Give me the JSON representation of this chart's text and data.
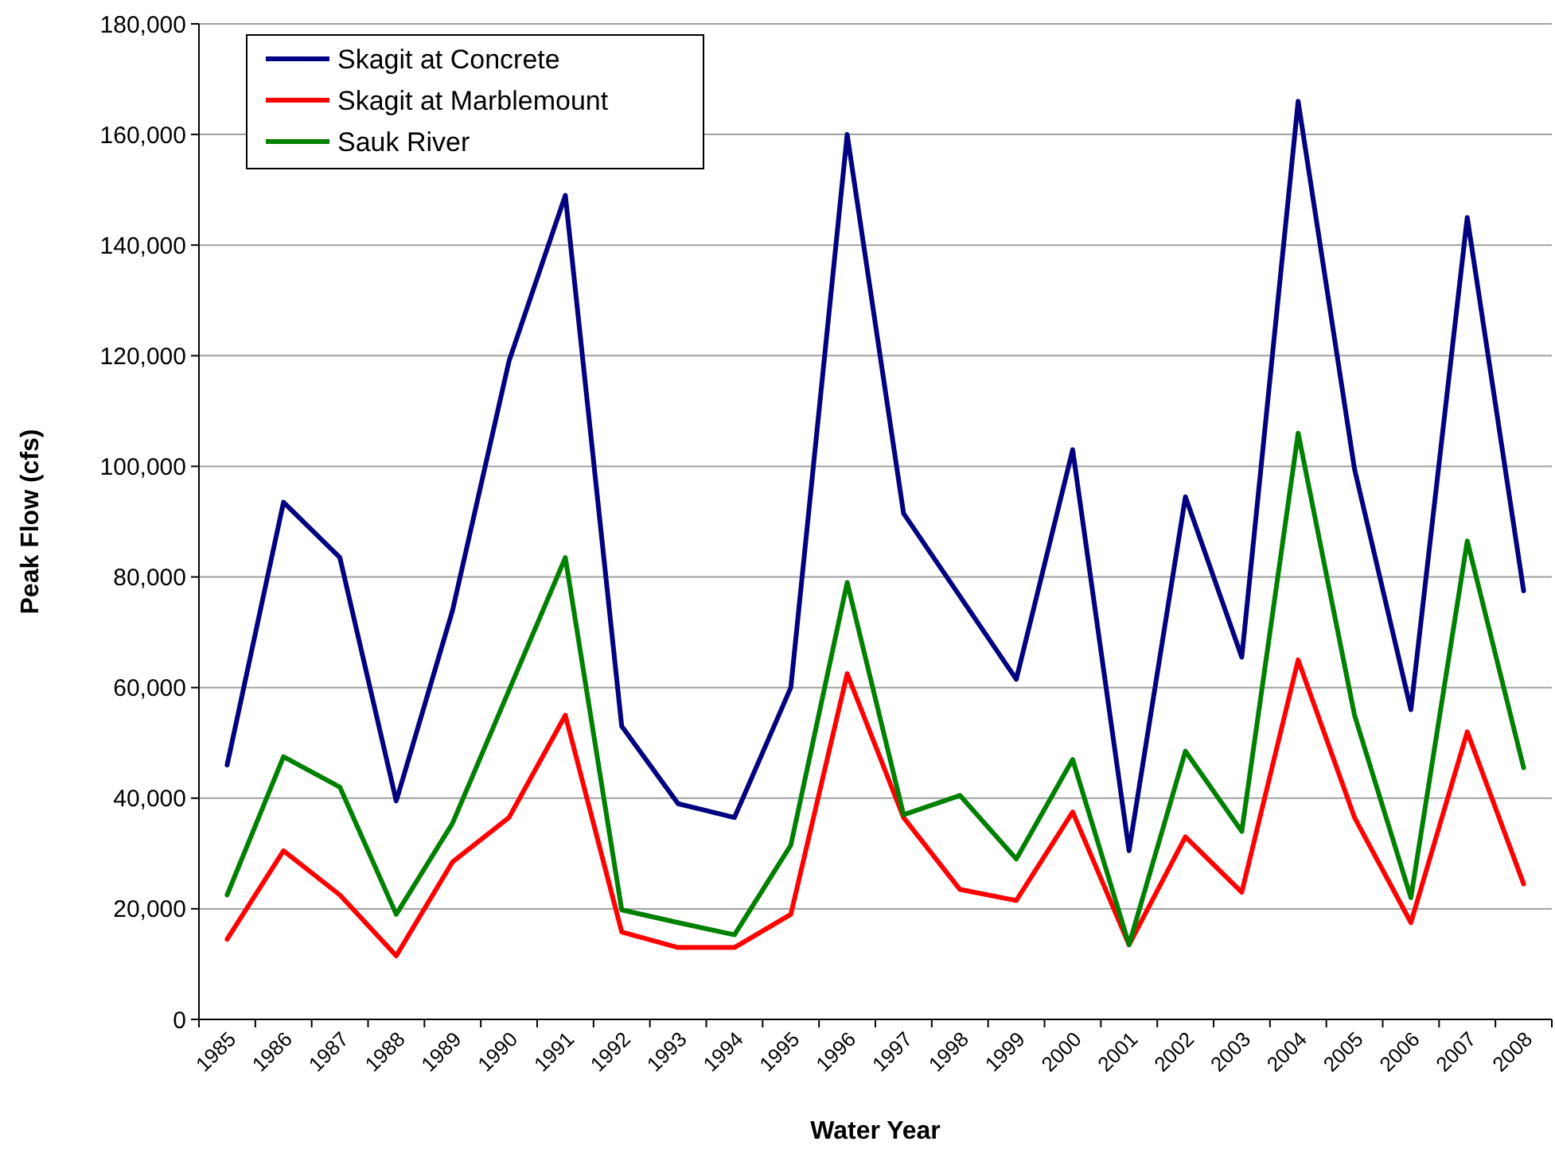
{
  "chart_data": {
    "type": "line",
    "xlabel": "Water Year",
    "ylabel": "Peak Flow (cfs)",
    "categories": [
      "1985",
      "1986",
      "1987",
      "1988",
      "1989",
      "1990",
      "1991",
      "1992",
      "1993",
      "1994",
      "1995",
      "1996",
      "1997",
      "1998",
      "1999",
      "2000",
      "2001",
      "2002",
      "2003",
      "2004",
      "2005",
      "2006",
      "2007",
      "2008"
    ],
    "series": [
      {
        "name": "Skagit at Concrete",
        "color": "#000080",
        "values": [
          46000,
          93500,
          83500,
          39500,
          74000,
          119000,
          149000,
          53000,
          39000,
          36500,
          60000,
          160000,
          91500,
          76500,
          61500,
          103000,
          30500,
          94500,
          65500,
          166000,
          99500,
          56000,
          145000,
          77500
        ]
      },
      {
        "name": "Skagit at Marblemount",
        "color": "#ff0000",
        "values": [
          14500,
          30500,
          22500,
          11500,
          28500,
          36500,
          55000,
          15800,
          13000,
          13000,
          19000,
          62500,
          36500,
          23500,
          21500,
          37500,
          13500,
          33000,
          23000,
          65000,
          36500,
          17500,
          52000,
          24500
        ]
      },
      {
        "name": "Sauk River",
        "color": "#008000",
        "values": [
          22500,
          47500,
          42000,
          19000,
          35500,
          59500,
          83500,
          19800,
          17500,
          15300,
          31500,
          79000,
          37000,
          40500,
          29000,
          47000,
          13500,
          48500,
          34000,
          106000,
          55000,
          22000,
          86500,
          45500
        ]
      }
    ],
    "ylim": [
      0,
      180000
    ],
    "yticks": [
      {
        "value": 0,
        "label": "0"
      },
      {
        "value": 20000,
        "label": "20,000"
      },
      {
        "value": 40000,
        "label": "40,000"
      },
      {
        "value": 60000,
        "label": "60,000"
      },
      {
        "value": 80000,
        "label": "80,000"
      },
      {
        "value": 100000,
        "label": "100,000"
      },
      {
        "value": 120000,
        "label": "120,000"
      },
      {
        "value": 140000,
        "label": "140,000"
      },
      {
        "value": 160000,
        "label": "160,000"
      },
      {
        "value": 180000,
        "label": "180,000"
      }
    ],
    "grid": "y",
    "legend": "top left",
    "marker": "none",
    "line_style": "solid"
  }
}
